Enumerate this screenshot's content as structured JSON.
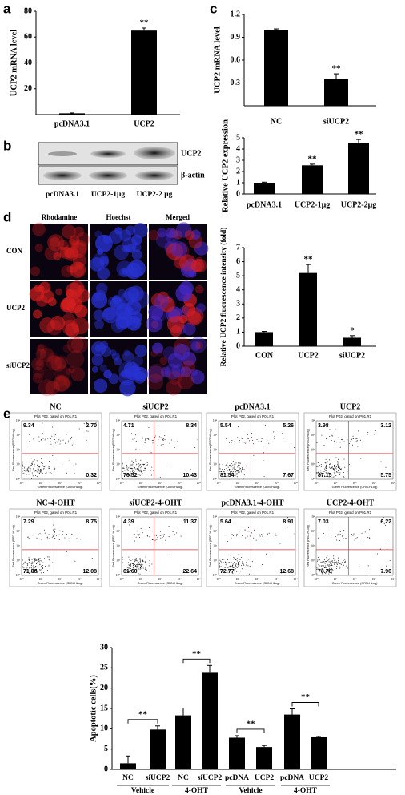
{
  "panels": [
    "a",
    "b",
    "c",
    "d",
    "e"
  ],
  "chart_data": [
    {
      "type": "bar",
      "y_label": "UCP2 mRNA level",
      "categories": [
        "pcDNA3.1",
        "UCP2"
      ],
      "values": [
        1,
        65
      ],
      "errors": [
        0.3,
        2
      ],
      "annotations": [
        null,
        "**"
      ],
      "color": "#000000",
      "ylim": [
        0,
        80
      ],
      "yticks": [
        20,
        40,
        60,
        80
      ]
    },
    {
      "type": "bar",
      "y_label": "UCP2 mRNA level",
      "categories": [
        "NC",
        "siUCP2"
      ],
      "values": [
        1.0,
        0.35
      ],
      "errors": [
        0.01,
        0.07
      ],
      "annotations": [
        null,
        "**"
      ],
      "color": "#000000",
      "ylim": [
        0,
        1.2
      ],
      "yticks": [
        0.3,
        0.6,
        0.9,
        1.2
      ]
    },
    {
      "type": "bar",
      "y_label": "Relative UCP2 expression",
      "categories": [
        "pcDNA3.1",
        "UCP2-1μg",
        "UCP2-2μg"
      ],
      "values": [
        1,
        2.55,
        4.5
      ],
      "errors": [
        0.05,
        0.1,
        0.35
      ],
      "annotations": [
        null,
        "**",
        "**"
      ],
      "color": "#000000",
      "ylim": [
        0,
        5
      ],
      "yticks": [
        0,
        1,
        2,
        3,
        4,
        5
      ]
    },
    {
      "type": "bar",
      "y_label": "Relative UCP2 fluorescence intensity (fold)",
      "categories": [
        "CON",
        "UCP2",
        "siUCP2"
      ],
      "values": [
        1,
        5.2,
        0.6
      ],
      "errors": [
        0.05,
        0.6,
        0.15
      ],
      "annotations": [
        null,
        "**",
        "*"
      ],
      "color": "#000000",
      "ylim": [
        0,
        7
      ],
      "yticks": [
        0,
        1,
        2,
        3,
        4,
        5,
        6,
        7
      ]
    },
    {
      "type": "bar",
      "y_label": "Apoptotic cells(%)",
      "categories": [
        "NC",
        "siUCP2",
        "NC",
        "siUCP2",
        "pcDNA",
        "UCP2",
        "pcDNA",
        "UCP2"
      ],
      "values": [
        1.5,
        9.8,
        13.3,
        23.8,
        7.8,
        5.5,
        13.5,
        7.9
      ],
      "errors": [
        1.8,
        0.9,
        1.8,
        1.8,
        0.5,
        0.4,
        1.4,
        0.2
      ],
      "groups": [
        "Vehicle",
        "4-OHT",
        "Vehicle",
        "4-OHT"
      ],
      "brackets": [
        "**",
        "**",
        "**",
        "**"
      ],
      "color": "#000000",
      "ylim": [
        0,
        30
      ],
      "yticks": [
        0,
        5,
        10,
        15,
        20,
        25,
        30
      ]
    }
  ],
  "blot": {
    "bands": [
      "UCP2",
      "β-actin"
    ],
    "lanes": [
      "pcDNA3.1",
      "UCP2-1μg",
      "UCP2-2 μg"
    ]
  },
  "microscopy": {
    "columns": [
      "Rhodamine",
      "Hoechst",
      "Merged"
    ],
    "rows": [
      "CON",
      "UCP2",
      "siUCP2"
    ]
  },
  "flow": {
    "plot_header": "Plot P02, gated on P01.R1",
    "y_axis": "Red Fluorescence (RED-HLog)",
    "x_axis": "Green Fluorescence (GRN-HLog)",
    "log_ticks": [
      "10⁰",
      "10¹",
      "10²",
      "10³",
      "10⁴"
    ],
    "plots": [
      {
        "title": "NC",
        "quadrants": [
          "9.34",
          "2.70",
          null,
          "0.32"
        ]
      },
      {
        "title": "siUCP2",
        "quadrants": [
          "4.71",
          "8.34",
          "76.52",
          "10.43"
        ]
      },
      {
        "title": "pcDNA3.1",
        "quadrants": [
          "5.54",
          "5.26",
          "81.54",
          "7.67"
        ]
      },
      {
        "title": "UCP2",
        "quadrants": [
          "3.98",
          "3.12",
          "87.15",
          "5.75"
        ]
      },
      {
        "title": "NC-4-OHT",
        "quadrants": [
          "7.29",
          "8.75",
          "71.88",
          "12.08"
        ]
      },
      {
        "title": "siUCP2-4-OHT",
        "quadrants": [
          "4.39",
          "11.37",
          "61.60",
          "22.64"
        ]
      },
      {
        "title": "pcDNA3.1-4-OHT",
        "quadrants": [
          "5.64",
          "8.91",
          "72.77",
          "12.68"
        ]
      },
      {
        "title": "UCP2-4-OHT",
        "quadrants": [
          "7.03",
          "6.22",
          "78.78",
          "7.96"
        ]
      }
    ]
  }
}
